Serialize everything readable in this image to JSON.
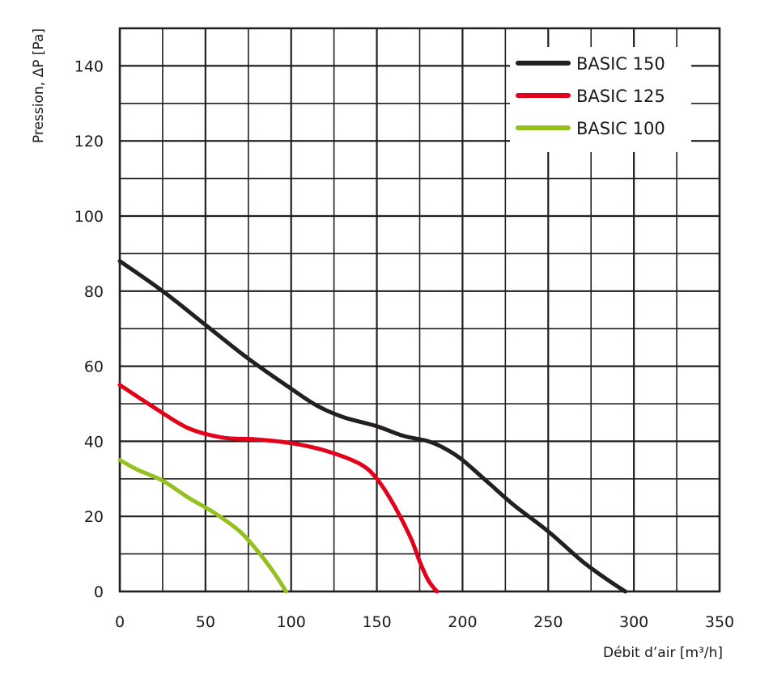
{
  "chart_data": {
    "type": "line",
    "xlabel": "Débit d’air [m³/h]",
    "ylabel": "Pression, ΔP [Pa]",
    "xlim": [
      0,
      350
    ],
    "ylim": [
      0,
      150
    ],
    "x_ticks": [
      0,
      50,
      100,
      150,
      200,
      250,
      300,
      350
    ],
    "y_ticks": [
      0,
      20,
      40,
      60,
      80,
      100,
      120,
      140
    ],
    "x_minor_step": 25,
    "y_minor_step": 10,
    "grid": true,
    "legend_position": "top-right",
    "series": [
      {
        "name": "BASIC 150",
        "color": "#231f20",
        "points": [
          [
            0,
            88
          ],
          [
            25,
            80
          ],
          [
            50,
            71
          ],
          [
            75,
            62
          ],
          [
            100,
            54
          ],
          [
            115,
            49.5
          ],
          [
            130,
            46.5
          ],
          [
            150,
            44
          ],
          [
            165,
            41.5
          ],
          [
            180,
            40
          ],
          [
            190,
            38
          ],
          [
            200,
            35
          ],
          [
            215,
            29
          ],
          [
            230,
            23
          ],
          [
            250,
            16
          ],
          [
            270,
            8
          ],
          [
            285,
            3
          ],
          [
            295,
            0
          ]
        ]
      },
      {
        "name": "BASIC 125",
        "color": "#e2001a",
        "points": [
          [
            0,
            55
          ],
          [
            20,
            49
          ],
          [
            40,
            43.5
          ],
          [
            60,
            41
          ],
          [
            80,
            40.5
          ],
          [
            100,
            39.5
          ],
          [
            120,
            37.5
          ],
          [
            140,
            34
          ],
          [
            150,
            30
          ],
          [
            160,
            23
          ],
          [
            170,
            14
          ],
          [
            175,
            8
          ],
          [
            180,
            3
          ],
          [
            185,
            0
          ]
        ]
      },
      {
        "name": "BASIC 100",
        "color": "#95c11f",
        "points": [
          [
            0,
            35
          ],
          [
            10,
            32.5
          ],
          [
            25,
            29.5
          ],
          [
            40,
            25
          ],
          [
            55,
            21
          ],
          [
            70,
            16
          ],
          [
            80,
            11
          ],
          [
            90,
            5
          ],
          [
            97,
            0
          ]
        ]
      }
    ]
  }
}
